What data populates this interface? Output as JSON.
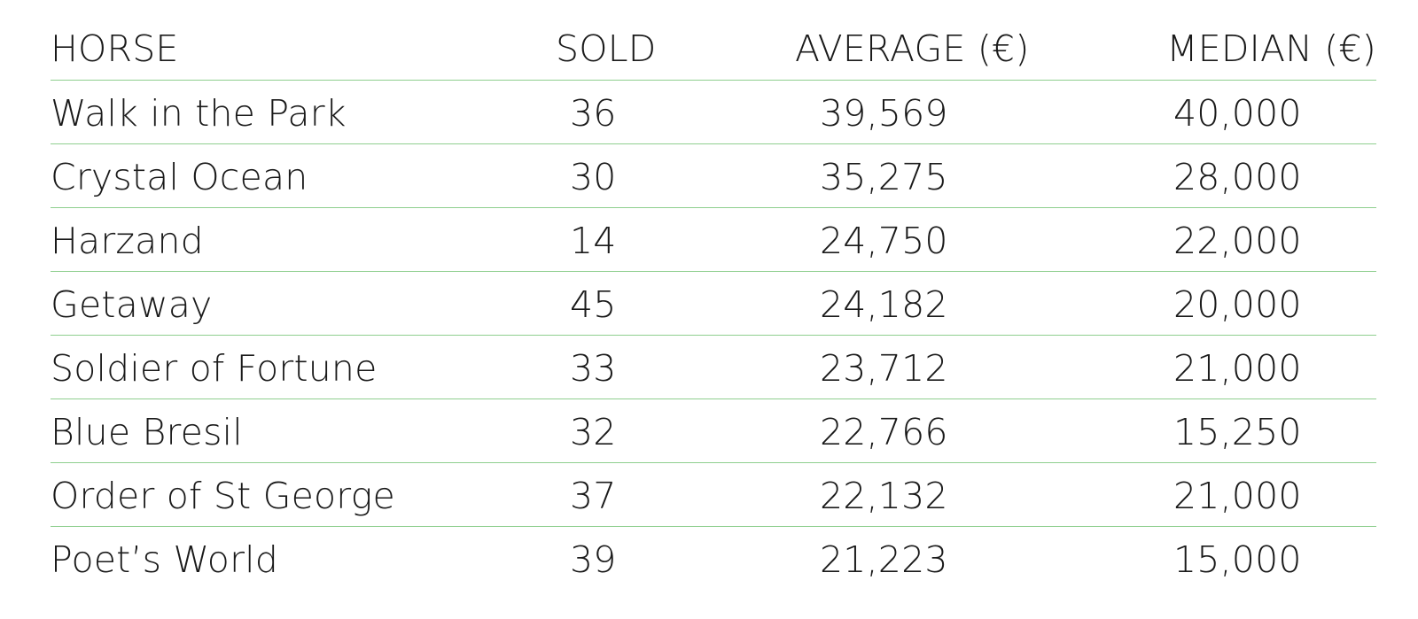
{
  "table": {
    "headers": {
      "horse": "HORSE",
      "sold": "SOLD",
      "average": "AVERAGE (€)",
      "median": "MEDIAN (€)"
    },
    "rows": [
      {
        "horse": "Walk in the Park",
        "sold": "36",
        "average": "39,569",
        "median": "40,000"
      },
      {
        "horse": "Crystal Ocean",
        "sold": "30",
        "average": "35,275",
        "median": "28,000"
      },
      {
        "horse": "Harzand",
        "sold": "14",
        "average": "24,750",
        "median": "22,000"
      },
      {
        "horse": "Getaway",
        "sold": "45",
        "average": "24,182",
        "median": "20,000"
      },
      {
        "horse": "Soldier of Fortune",
        "sold": "33",
        "average": "23,712",
        "median": "21,000"
      },
      {
        "horse": "Blue Bresil",
        "sold": "32",
        "average": "22,766",
        "median": "15,250"
      },
      {
        "horse": "Order of St George",
        "sold": "37",
        "average": "22,132",
        "median": "21,000"
      },
      {
        "horse": "Poet’s World",
        "sold": "39",
        "average": "21,223",
        "median": "15,000"
      }
    ],
    "rule_color": "#8fcf8f"
  }
}
